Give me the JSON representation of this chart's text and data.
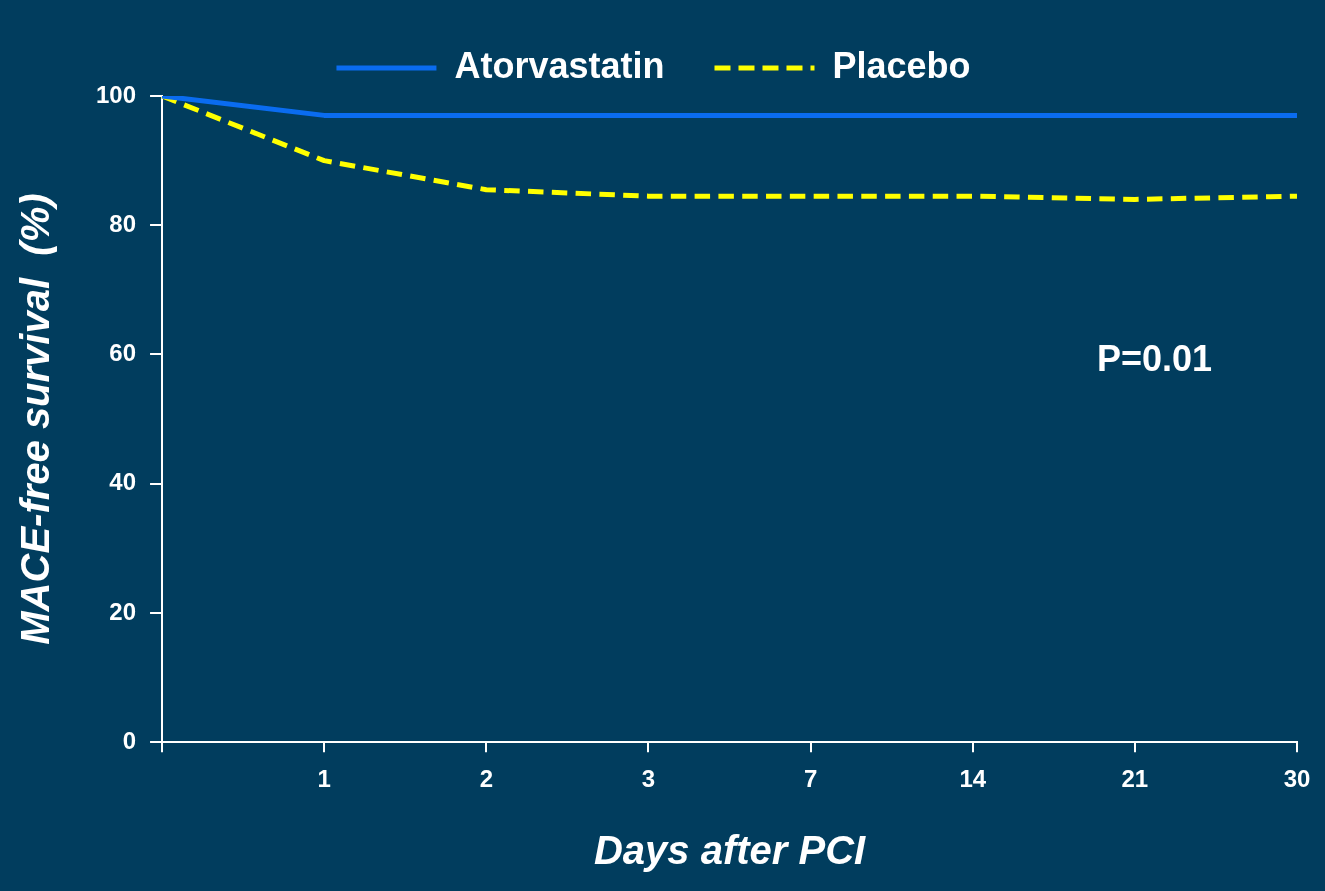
{
  "chart_data": {
    "type": "line",
    "xlabel": "Days after PCI",
    "ylabel": "MACE-free survival  (%)",
    "categories": [
      null,
      "1",
      "2",
      "3",
      "7",
      "14",
      "21",
      "30"
    ],
    "series": [
      {
        "name": "Atorvastatin",
        "color": "#0a6cf0",
        "values": [
          100,
          97,
          97,
          97,
          97,
          97,
          97,
          97
        ]
      },
      {
        "name": "Placebo",
        "color": "#ffff00",
        "line_style": "dashed",
        "values": [
          100,
          90,
          85.5,
          84.5,
          84.5,
          84.5,
          84,
          84.5
        ]
      }
    ],
    "ylim": [
      0,
      100
    ],
    "yticks": [
      0,
      20,
      40,
      60,
      80,
      100
    ],
    "grid": false,
    "legend": "top",
    "marker": "none",
    "annotations": [
      "P=0.01"
    ]
  }
}
